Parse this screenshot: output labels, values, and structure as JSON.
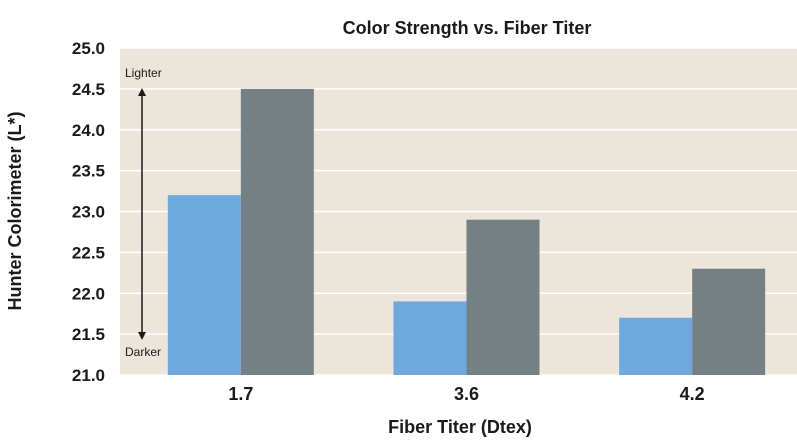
{
  "chart_data": {
    "type": "bar",
    "title": "Color Strength vs. Fiber Titer",
    "xlabel": "Fiber Titer (Dtex)",
    "ylabel": "Hunter Colorimeter (L*)",
    "categories": [
      "1.7",
      "3.6",
      "4.2"
    ],
    "series": [
      {
        "values": [
          23.2,
          21.9,
          21.7
        ],
        "color": "#6fa8dc"
      },
      {
        "values": [
          24.5,
          22.9,
          22.3
        ],
        "color": "#758085"
      }
    ],
    "ylim": [
      21.0,
      25.0
    ],
    "yticks": [
      "21.0",
      "21.5",
      "22.0",
      "22.5",
      "23.0",
      "23.5",
      "24.0",
      "24.5",
      "25.0"
    ],
    "grid": true,
    "legend": "none",
    "annotations": {
      "top": "Lighter",
      "bottom": "Darker"
    },
    "colors": {
      "plot_background": "#ece5da",
      "gridline": "#ffffff"
    }
  }
}
